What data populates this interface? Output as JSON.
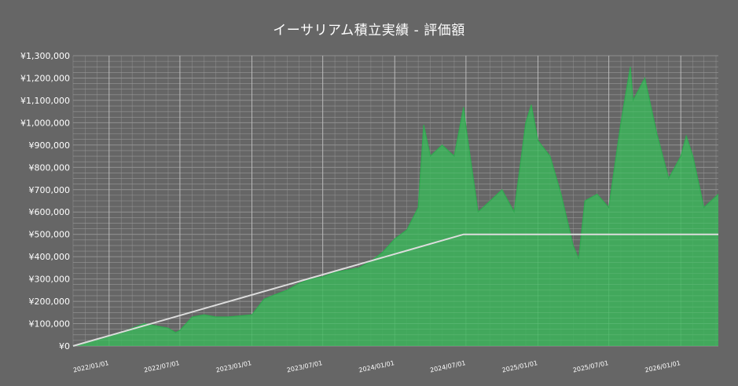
{
  "chart_data": {
    "type": "area",
    "title": "イーサリアム積立実績 - 評価額",
    "x_start": "2021-10-01",
    "x_end": "2026-04-07",
    "ylim": [
      0,
      1300000
    ],
    "y_ticks": [
      0,
      100000,
      200000,
      300000,
      400000,
      500000,
      600000,
      700000,
      800000,
      900000,
      1000000,
      1100000,
      1200000,
      1300000
    ],
    "y_tick_labels": [
      "¥0",
      "¥100,000",
      "¥200,000",
      "¥300,000",
      "¥400,000",
      "¥500,000",
      "¥600,000",
      "¥700,000",
      "¥800,000",
      "¥900,000",
      "¥1,000,000",
      "¥1,100,000",
      "¥1,200,000",
      "¥1,300,000"
    ],
    "x_ticks": [
      "2022-01-01",
      "2022-07-01",
      "2023-01-01",
      "2023-07-01",
      "2024-01-01",
      "2024-07-01",
      "2025-01-01",
      "2025-07-01",
      "2026-01-01"
    ],
    "x_tick_labels": [
      "2022/01/01",
      "2022/07/01",
      "2023/01/01",
      "2023/07/01",
      "2024/01/01",
      "2024/07/01",
      "2025/01/01",
      "2025/07/01",
      "2026/01/01"
    ],
    "grid": true,
    "colors": {
      "background": "#666666",
      "area_fill": "#3cb45a",
      "area_line": "#2fa84f",
      "invested_line": "#dddddd",
      "grid": "#8a8a8a",
      "text": "#ffffff"
    },
    "series": [
      {
        "type": "area",
        "x": [
          "2021-10-01",
          "2021-11-01",
          "2021-12-01",
          "2022-01-01",
          "2022-02-01",
          "2022-03-01",
          "2022-04-01",
          "2022-05-01",
          "2022-06-01",
          "2022-06-20",
          "2022-07-01",
          "2022-08-01",
          "2022-09-01",
          "2022-10-01",
          "2022-11-01",
          "2022-12-01",
          "2023-01-01",
          "2023-02-01",
          "2023-03-01",
          "2023-04-01",
          "2023-05-01",
          "2023-06-01",
          "2023-07-01",
          "2023-08-01",
          "2023-09-01",
          "2023-10-01",
          "2023-11-01",
          "2023-12-01",
          "2024-01-01",
          "2024-02-01",
          "2024-03-01",
          "2024-03-15",
          "2024-04-01",
          "2024-05-01",
          "2024-06-01",
          "2024-06-25",
          "2024-07-01",
          "2024-08-01",
          "2024-09-01",
          "2024-10-01",
          "2024-11-01",
          "2024-12-01",
          "2024-12-15",
          "2025-01-01",
          "2025-02-01",
          "2025-03-01",
          "2025-04-01",
          "2025-04-15",
          "2025-05-01",
          "2025-06-01",
          "2025-07-01",
          "2025-08-01",
          "2025-08-25",
          "2025-09-01",
          "2025-10-01",
          "2025-11-01",
          "2025-12-01",
          "2026-01-01",
          "2026-01-15",
          "2026-02-01",
          "2026-03-01",
          "2026-04-07"
        ],
        "values": [
          0,
          15000,
          30000,
          45000,
          60000,
          80000,
          100000,
          90000,
          80000,
          60000,
          70000,
          130000,
          140000,
          130000,
          130000,
          135000,
          140000,
          210000,
          230000,
          250000,
          280000,
          300000,
          310000,
          330000,
          340000,
          350000,
          380000,
          420000,
          480000,
          520000,
          620000,
          990000,
          850000,
          900000,
          850000,
          1070000,
          980000,
          600000,
          650000,
          700000,
          600000,
          1000000,
          1080000,
          920000,
          850000,
          680000,
          450000,
          390000,
          650000,
          680000,
          620000,
          1000000,
          1250000,
          1100000,
          1200000,
          950000,
          750000,
          850000,
          940000,
          850000,
          620000,
          680000
        ]
      },
      {
        "type": "line",
        "x": [
          "2021-10-01",
          "2024-06-25",
          "2026-04-07"
        ],
        "values": [
          0,
          500000,
          500000
        ]
      }
    ]
  }
}
